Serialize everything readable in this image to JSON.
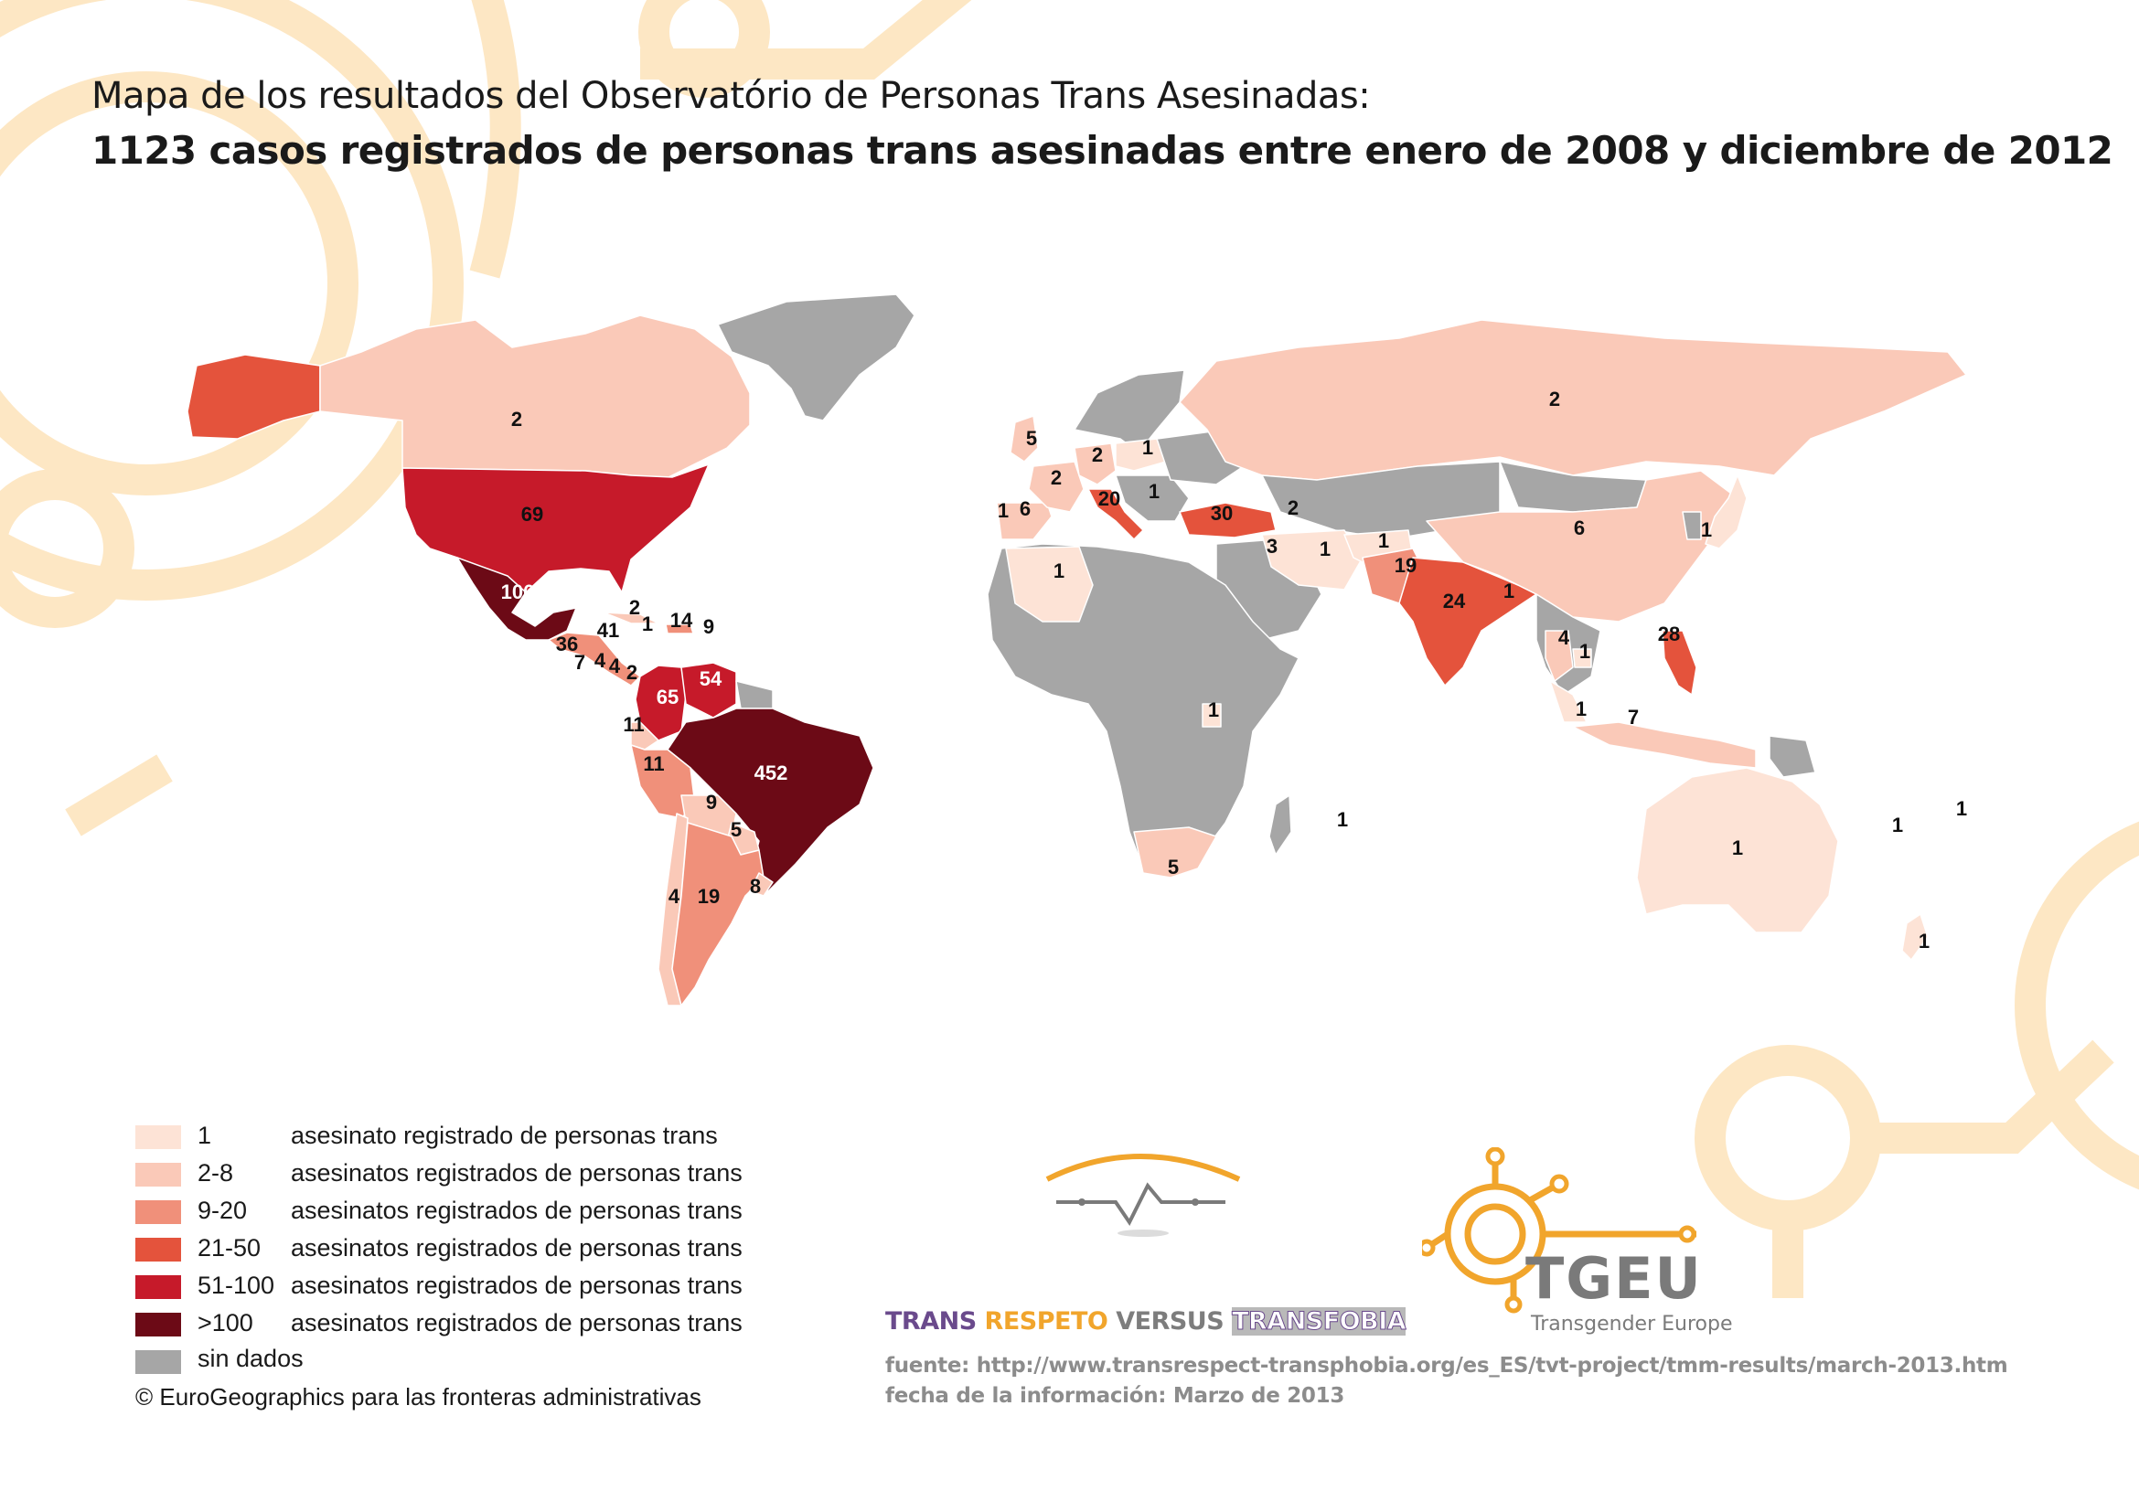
{
  "title": {
    "line1": "Mapa de los resultados del Observatório de Personas Trans Asesinadas:",
    "line2": "1123 casos registrados de personas trans asesinadas entre enero de 2008 y diciembre de 2012"
  },
  "colors": {
    "c1": "#fde3d6",
    "c2_8": "#fac9b8",
    "c9_20": "#f0907a",
    "c21_50": "#e4533c",
    "c51_100": "#c61a2a",
    "c100": "#6c0a16",
    "nodata": "#a6a6a6",
    "deco": "#fde7c4"
  },
  "map_labels": [
    {
      "region": "Canada",
      "value": "2"
    },
    {
      "region": "USA",
      "value": "69"
    },
    {
      "region": "Mexico",
      "value": "106"
    },
    {
      "region": "Cuba",
      "value": "2"
    },
    {
      "region": "Jamaica",
      "value": "1"
    },
    {
      "region": "Dominican Republic",
      "value": "14"
    },
    {
      "region": "Puerto Rico",
      "value": "9"
    },
    {
      "region": "Honduras",
      "value": "41"
    },
    {
      "region": "Guatemala",
      "value": "36"
    },
    {
      "region": "El Salvador",
      "value": "7"
    },
    {
      "region": "Nicaragua",
      "value": "4"
    },
    {
      "region": "Costa Rica",
      "value": "4"
    },
    {
      "region": "Panama",
      "value": "2"
    },
    {
      "region": "Colombia",
      "value": "65"
    },
    {
      "region": "Venezuela",
      "value": "54"
    },
    {
      "region": "Ecuador",
      "value": "11"
    },
    {
      "region": "Peru",
      "value": "11"
    },
    {
      "region": "Brazil",
      "value": "452"
    },
    {
      "region": "Bolivia",
      "value": "9"
    },
    {
      "region": "Paraguay",
      "value": "5"
    },
    {
      "region": "Uruguay",
      "value": "8"
    },
    {
      "region": "Chile",
      "value": "4"
    },
    {
      "region": "Argentina",
      "value": "19"
    },
    {
      "region": "UK",
      "value": "5"
    },
    {
      "region": "Germany",
      "value": "2"
    },
    {
      "region": "Poland",
      "value": "1"
    },
    {
      "region": "France",
      "value": "2"
    },
    {
      "region": "Serbia",
      "value": "1"
    },
    {
      "region": "Portugal",
      "value": "1"
    },
    {
      "region": "Spain",
      "value": "6"
    },
    {
      "region": "Italy",
      "value": "20"
    },
    {
      "region": "Turkey",
      "value": "30"
    },
    {
      "region": "Azerbaijan",
      "value": "2"
    },
    {
      "region": "Iraq",
      "value": "3"
    },
    {
      "region": "Iran",
      "value": "1"
    },
    {
      "region": "Afghanistan",
      "value": "1"
    },
    {
      "region": "Pakistan",
      "value": "19"
    },
    {
      "region": "India",
      "value": "24"
    },
    {
      "region": "Bangladesh",
      "value": "1"
    },
    {
      "region": "Russia",
      "value": "2"
    },
    {
      "region": "China",
      "value": "6"
    },
    {
      "region": "Japan",
      "value": "1"
    },
    {
      "region": "Thailand",
      "value": "4"
    },
    {
      "region": "Cambodia",
      "value": "1"
    },
    {
      "region": "Philippines",
      "value": "28"
    },
    {
      "region": "Malaysia",
      "value": "1"
    },
    {
      "region": "Indonesia",
      "value": "7"
    },
    {
      "region": "Algeria",
      "value": "1"
    },
    {
      "region": "Uganda",
      "value": "1"
    },
    {
      "region": "South Africa",
      "value": "5"
    },
    {
      "region": "Mauritius",
      "value": "1"
    },
    {
      "region": "Australia",
      "value": "1"
    },
    {
      "region": "New Caledonia",
      "value": "1"
    },
    {
      "region": "Fiji",
      "value": "1"
    },
    {
      "region": "New Zealand",
      "value": "1"
    }
  ],
  "legend": {
    "items": [
      {
        "range": "1",
        "desc": "asesinato registrado de personas trans",
        "color": "#fde3d6"
      },
      {
        "range": "2-8",
        "desc": "asesinatos registrados de personas trans",
        "color": "#fac9b8"
      },
      {
        "range": "9-20",
        "desc": "asesinatos registrados de personas trans",
        "color": "#f0907a"
      },
      {
        "range": "21-50",
        "desc": "asesinatos registrados de personas trans",
        "color": "#e4533c"
      },
      {
        "range": "51-100",
        "desc": "asesinatos registrados de personas trans",
        "color": "#c61a2a"
      },
      {
        "range": ">100",
        "desc": "asesinatos registrados de personas trans",
        "color": "#6c0a16"
      }
    ],
    "nodata_label": "sin dados",
    "copyright": "© EuroGeographics para las fronteras administrativas"
  },
  "tvt": {
    "p1": "TRANS ",
    "p2": "RESPETO ",
    "p3": "VERSUS ",
    "p4": "TRANSFOBIA"
  },
  "tgeu": {
    "name": "TGEU",
    "subtitle": "Transgender Europe"
  },
  "source": {
    "line1": "fuente: http://www.transrespect-transphobia.org/es_ES/tvt-project/tmm-results/march-2013.htm",
    "line2": "fecha de la información: Marzo de 2013"
  }
}
